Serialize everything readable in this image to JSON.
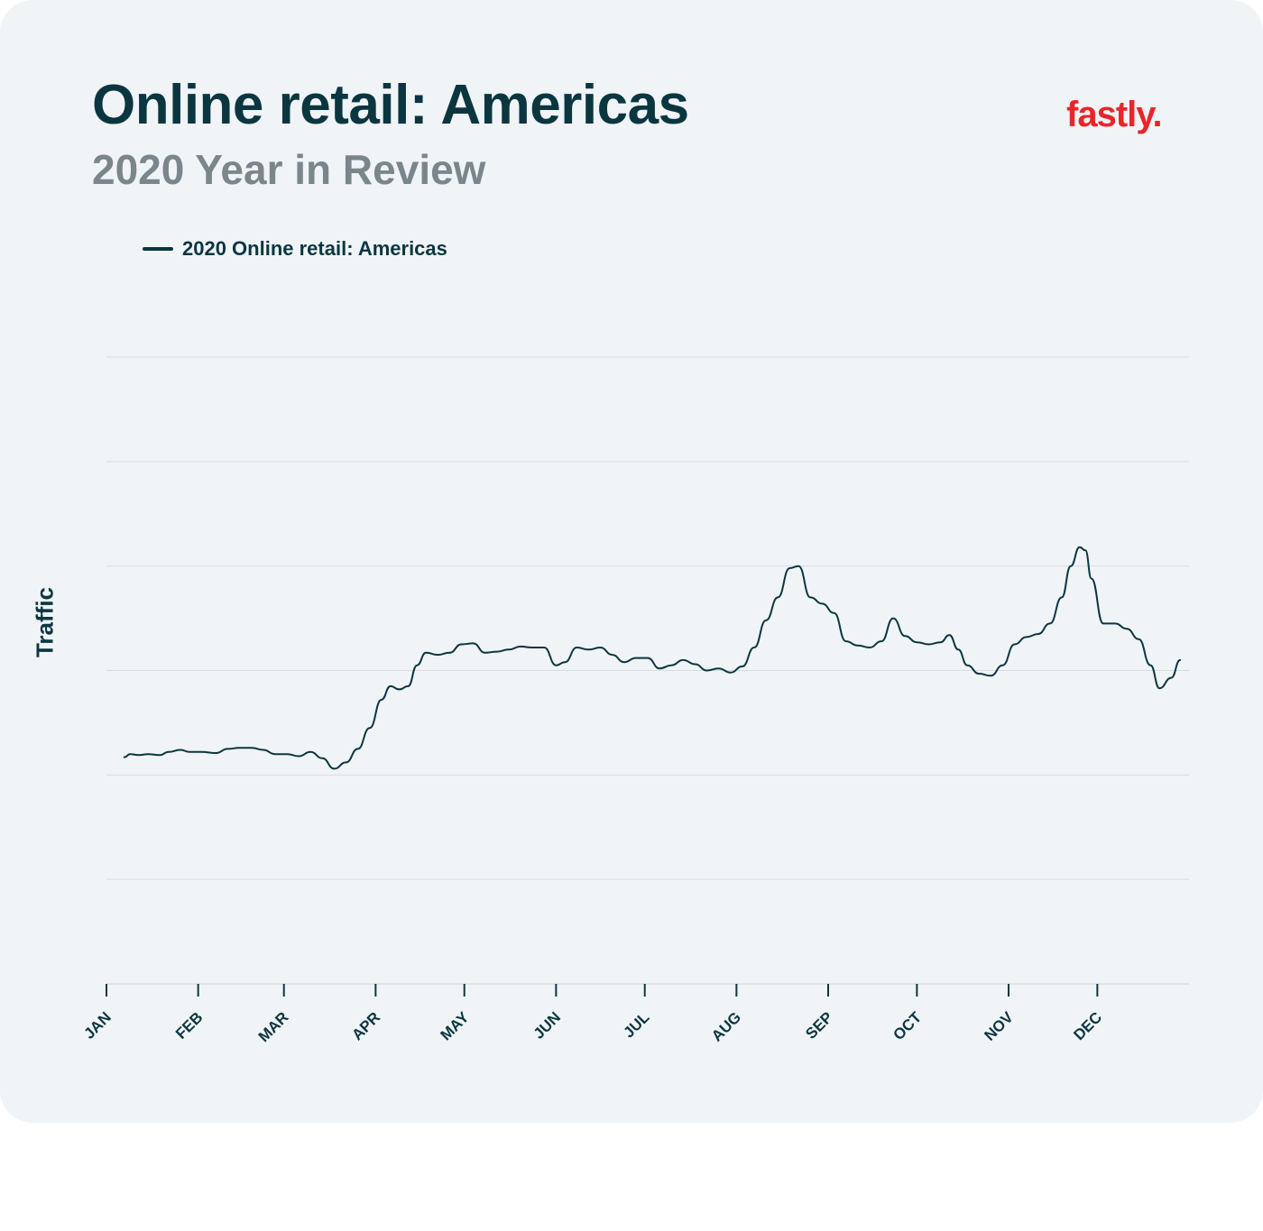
{
  "header": {
    "title": "Online retail: Americas",
    "subtitle": "2020 Year in Review",
    "logo_text": "fastly."
  },
  "colors": {
    "card_background": "#f0f4f7",
    "title": "#0b3640",
    "subtitle": "#7a868c",
    "logo": "#e8262a",
    "line": "#0b3640",
    "grid": "#d5dde2"
  },
  "chart_data": {
    "type": "line",
    "title": "Online retail: Americas",
    "subtitle": "2020 Year in Review",
    "xlabel": "",
    "ylabel": "Traffic",
    "x_tick_labels": [
      "JAN",
      "FEB",
      "MAR",
      "APR",
      "MAY",
      "JUN",
      "JUL",
      "AUG",
      "SEP",
      "OCT",
      "NOV",
      "DEC"
    ],
    "xlim": [
      "2020-01-01",
      "2020-12-31"
    ],
    "ylim": [
      0,
      6
    ],
    "y_tick_labels_shown": false,
    "grid": true,
    "legend": "top-left",
    "series": [
      {
        "name": "2020 Online retail: Americas",
        "color": "#0b3640",
        "points": [
          [
            "2020-01-07",
            2.17
          ],
          [
            "2020-01-09",
            2.2
          ],
          [
            "2020-01-12",
            2.19
          ],
          [
            "2020-01-15",
            2.2
          ],
          [
            "2020-01-19",
            2.19
          ],
          [
            "2020-01-22",
            2.22
          ],
          [
            "2020-01-26",
            2.24
          ],
          [
            "2020-01-29",
            2.22
          ],
          [
            "2020-02-02",
            2.22
          ],
          [
            "2020-02-07",
            2.21
          ],
          [
            "2020-02-11",
            2.25
          ],
          [
            "2020-02-15",
            2.26
          ],
          [
            "2020-02-19",
            2.26
          ],
          [
            "2020-02-23",
            2.24
          ],
          [
            "2020-02-27",
            2.2
          ],
          [
            "2020-03-02",
            2.2
          ],
          [
            "2020-03-06",
            2.18
          ],
          [
            "2020-03-10",
            2.22
          ],
          [
            "2020-03-14",
            2.16
          ],
          [
            "2020-03-18",
            2.06
          ],
          [
            "2020-03-22",
            2.12
          ],
          [
            "2020-03-26",
            2.25
          ],
          [
            "2020-03-30",
            2.45
          ],
          [
            "2020-04-03",
            2.72
          ],
          [
            "2020-04-06",
            2.85
          ],
          [
            "2020-04-09",
            2.82
          ],
          [
            "2020-04-12",
            2.85
          ],
          [
            "2020-04-15",
            3.05
          ],
          [
            "2020-04-18",
            3.17
          ],
          [
            "2020-04-22",
            3.15
          ],
          [
            "2020-04-26",
            3.17
          ],
          [
            "2020-04-30",
            3.25
          ],
          [
            "2020-05-04",
            3.26
          ],
          [
            "2020-05-08",
            3.17
          ],
          [
            "2020-05-12",
            3.18
          ],
          [
            "2020-05-16",
            3.2
          ],
          [
            "2020-05-20",
            3.23
          ],
          [
            "2020-05-24",
            3.22
          ],
          [
            "2020-05-28",
            3.22
          ],
          [
            "2020-06-01",
            3.05
          ],
          [
            "2020-06-04",
            3.08
          ],
          [
            "2020-06-08",
            3.22
          ],
          [
            "2020-06-12",
            3.2
          ],
          [
            "2020-06-16",
            3.22
          ],
          [
            "2020-06-20",
            3.15
          ],
          [
            "2020-06-24",
            3.08
          ],
          [
            "2020-06-28",
            3.12
          ],
          [
            "2020-07-02",
            3.12
          ],
          [
            "2020-07-06",
            3.02
          ],
          [
            "2020-07-10",
            3.05
          ],
          [
            "2020-07-14",
            3.1
          ],
          [
            "2020-07-18",
            3.06
          ],
          [
            "2020-07-22",
            3.0
          ],
          [
            "2020-07-26",
            3.02
          ],
          [
            "2020-07-30",
            2.98
          ],
          [
            "2020-08-03",
            3.04
          ],
          [
            "2020-08-07",
            3.22
          ],
          [
            "2020-08-11",
            3.48
          ],
          [
            "2020-08-15",
            3.7
          ],
          [
            "2020-08-19",
            3.98
          ],
          [
            "2020-08-22",
            4.0
          ],
          [
            "2020-08-26",
            3.7
          ],
          [
            "2020-08-30",
            3.64
          ],
          [
            "2020-09-03",
            3.55
          ],
          [
            "2020-09-07",
            3.28
          ],
          [
            "2020-09-11",
            3.24
          ],
          [
            "2020-09-15",
            3.22
          ],
          [
            "2020-09-19",
            3.28
          ],
          [
            "2020-09-23",
            3.5
          ],
          [
            "2020-09-27",
            3.33
          ],
          [
            "2020-10-01",
            3.27
          ],
          [
            "2020-10-05",
            3.25
          ],
          [
            "2020-10-09",
            3.27
          ],
          [
            "2020-10-12",
            3.34
          ],
          [
            "2020-10-15",
            3.2
          ],
          [
            "2020-10-18",
            3.05
          ],
          [
            "2020-10-22",
            2.97
          ],
          [
            "2020-10-26",
            2.95
          ],
          [
            "2020-10-30",
            3.05
          ],
          [
            "2020-11-03",
            3.25
          ],
          [
            "2020-11-07",
            3.32
          ],
          [
            "2020-11-11",
            3.35
          ],
          [
            "2020-11-15",
            3.45
          ],
          [
            "2020-11-19",
            3.7
          ],
          [
            "2020-11-22",
            4.0
          ],
          [
            "2020-11-25",
            4.18
          ],
          [
            "2020-11-27",
            4.15
          ],
          [
            "2020-11-29",
            3.88
          ],
          [
            "2020-12-03",
            3.45
          ],
          [
            "2020-12-07",
            3.45
          ],
          [
            "2020-12-11",
            3.4
          ],
          [
            "2020-12-15",
            3.3
          ],
          [
            "2020-12-19",
            3.05
          ],
          [
            "2020-12-22",
            2.83
          ],
          [
            "2020-12-26",
            2.93
          ],
          [
            "2020-12-29",
            3.1
          ]
        ]
      }
    ]
  }
}
